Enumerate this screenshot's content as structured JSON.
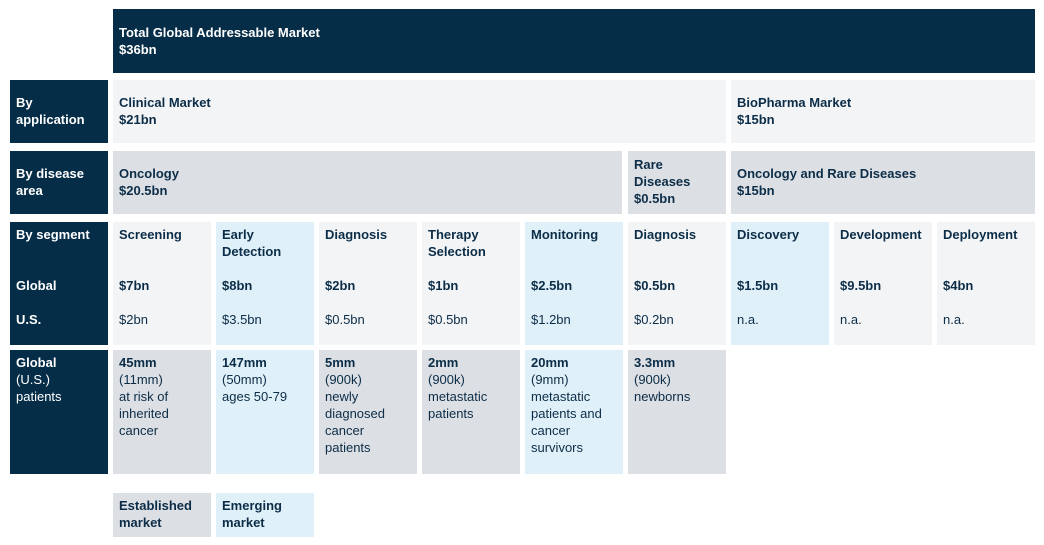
{
  "total": {
    "title": "Total Global Addressable Market",
    "value": "$36bn"
  },
  "labels": {
    "application": "By application",
    "disease": "By disease area",
    "segment": "By segment",
    "global": "Global",
    "us": "U.S.",
    "patients_1": "Global",
    "patients_2": "(U.S.)",
    "patients_3": "patients"
  },
  "application": [
    {
      "title": "Clinical Market",
      "value": "$21bn"
    },
    {
      "title": "BioPharma Market",
      "value": "$15bn"
    }
  ],
  "disease": [
    {
      "title": "Oncology",
      "value": "$20.5bn"
    },
    {
      "title": "Rare Diseases",
      "value": "$0.5bn"
    },
    {
      "title": "Oncology and Rare Diseases",
      "value": "$15bn"
    }
  ],
  "segments": [
    {
      "name": "Screening",
      "global": "$7bn",
      "us": "$2bn",
      "type": "established",
      "patients": {
        "global": "45mm",
        "us": "(11mm)",
        "desc": "at risk of inherited cancer"
      }
    },
    {
      "name": "Early Detection",
      "global": "$8bn",
      "us": "$3.5bn",
      "type": "emerging",
      "patients": {
        "global": "147mm",
        "us": "(50mm)",
        "desc": "ages 50-79"
      }
    },
    {
      "name": "Diagnosis",
      "global": "$2bn",
      "us": "$0.5bn",
      "type": "established",
      "patients": {
        "global": "5mm",
        "us": "(900k)",
        "desc": "newly diagnosed cancer patients"
      }
    },
    {
      "name": "Therapy Selection",
      "global": "$1bn",
      "us": "$0.5bn",
      "type": "established",
      "patients": {
        "global": "2mm",
        "us": "(900k)",
        "desc": "metastatic patients"
      }
    },
    {
      "name": "Monitoring",
      "global": "$2.5bn",
      "us": "$1.2bn",
      "type": "emerging",
      "patients": {
        "global": "20mm",
        "us": "(9mm)",
        "desc": "metastatic patients and cancer survivors"
      }
    },
    {
      "name": "Diagnosis",
      "global": "$0.5bn",
      "us": "$0.2bn",
      "type": "established",
      "patients": {
        "global": "3.3mm",
        "us": "(900k)",
        "desc": "newborns"
      }
    },
    {
      "name": "Discovery",
      "global": "$1.5bn",
      "us": "n.a.",
      "type": "emerging"
    },
    {
      "name": "Development",
      "global": "$9.5bn",
      "us": "n.a.",
      "type": "established"
    },
    {
      "name": "Deployment",
      "global": "$4bn",
      "us": "n.a.",
      "type": "established"
    }
  ],
  "legend": {
    "established": "Established market",
    "emerging": "Emerging market"
  },
  "colors": {
    "navy": "#062d48",
    "light_grey": "#f3f4f6",
    "mid_grey": "#dcdfe3",
    "light_blue": "#dff0f8"
  }
}
